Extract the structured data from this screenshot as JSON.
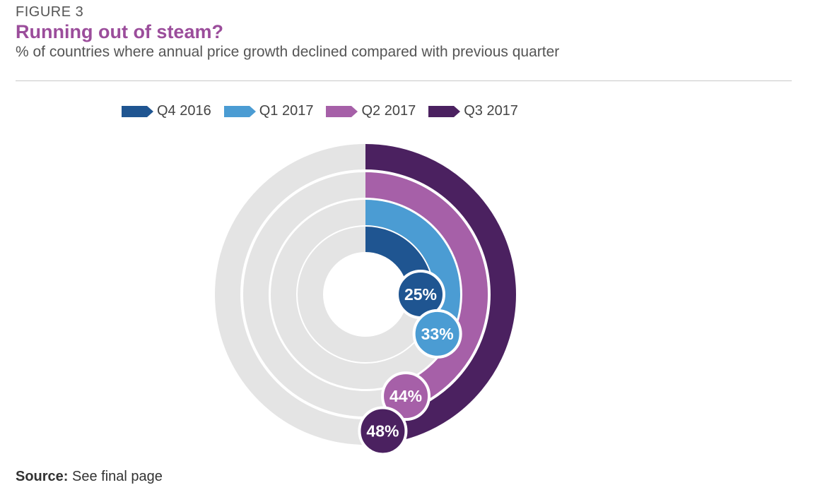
{
  "figure_label": "FIGURE 3",
  "title": "Running out of steam?",
  "subtitle": "% of countries where annual price growth declined compared with previous quarter",
  "source": {
    "label": "Source:",
    "text": "See final page"
  },
  "colors": {
    "track": "#e4e4e4",
    "title": "#9b4d9b",
    "Q4 2016": "#1f5591",
    "Q1 2017": "#4b9cd3",
    "Q2 2017": "#a660a8",
    "Q3 2017": "#4b2160"
  },
  "chart_data": {
    "type": "radial-bar",
    "title": "Running out of steam?",
    "subtitle": "% of countries where annual price growth declined compared with previous quarter",
    "unit": "%",
    "max": 100,
    "series": [
      {
        "name": "Q4 2016",
        "value": 25,
        "label": "25%"
      },
      {
        "name": "Q1 2017",
        "value": 33,
        "label": "33%"
      },
      {
        "name": "Q2 2017",
        "value": 44,
        "label": "44%"
      },
      {
        "name": "Q3 2017",
        "value": 48,
        "label": "48%"
      }
    ]
  }
}
